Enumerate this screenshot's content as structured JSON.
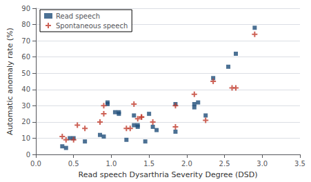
{
  "chart_data": {
    "type": "scatter",
    "xlabel": "Read speech Dysarthria Severity Degree (DSD)",
    "ylabel": "Automatic anomaly rate (%)",
    "series": [
      {
        "name": "Read speech",
        "color": "#1F4E79",
        "marker": "square",
        "x": [
          0.35,
          0.4,
          0.45,
          0.5,
          0.65,
          0.85,
          0.9,
          0.95,
          0.95,
          1.05,
          1.1,
          1.1,
          1.2,
          1.3,
          1.3,
          1.35,
          1.35,
          1.45,
          1.5,
          1.55,
          1.6,
          1.85,
          1.85,
          2.1,
          2.1,
          2.15,
          2.25,
          2.35,
          2.55,
          2.65,
          2.9
        ],
        "values": [
          5,
          4,
          10,
          10,
          8,
          12,
          11,
          32,
          31,
          26,
          26,
          25,
          9,
          18,
          24,
          17,
          18,
          8,
          25,
          17,
          15,
          31,
          14,
          31,
          29,
          32,
          24,
          47,
          54,
          62,
          78
        ]
      },
      {
        "name": "Spontaneous speech",
        "color": "#C0392B",
        "marker": "plus",
        "x": [
          0.35,
          0.4,
          0.5,
          0.55,
          0.65,
          0.85,
          0.9,
          0.9,
          1.2,
          1.25,
          1.3,
          1.35,
          1.4,
          1.4,
          1.55,
          1.85,
          1.85,
          2.1,
          2.25,
          2.35,
          2.6,
          2.65,
          2.9
        ],
        "values": [
          11,
          9,
          9,
          18,
          16,
          20,
          25,
          30,
          16,
          16,
          31,
          22,
          23,
          23,
          20,
          17,
          30,
          37,
          21,
          45,
          41,
          41,
          74
        ]
      }
    ],
    "xlim": [
      0.0,
      3.5
    ],
    "xticks": [
      {
        "value": 0.0,
        "label": "0.0"
      },
      0.5,
      {
        "value": 1.0,
        "label": "1.0"
      },
      1.5,
      {
        "value": 2.0,
        "label": "2.0"
      },
      2.5,
      {
        "value": 3.0,
        "label": "3.0"
      },
      3.5
    ],
    "ylim": [
      0,
      90
    ],
    "yticks": [
      0,
      10,
      20,
      30,
      40,
      50,
      60,
      70,
      80,
      90
    ],
    "grid": "y",
    "legend": "upper left"
  }
}
